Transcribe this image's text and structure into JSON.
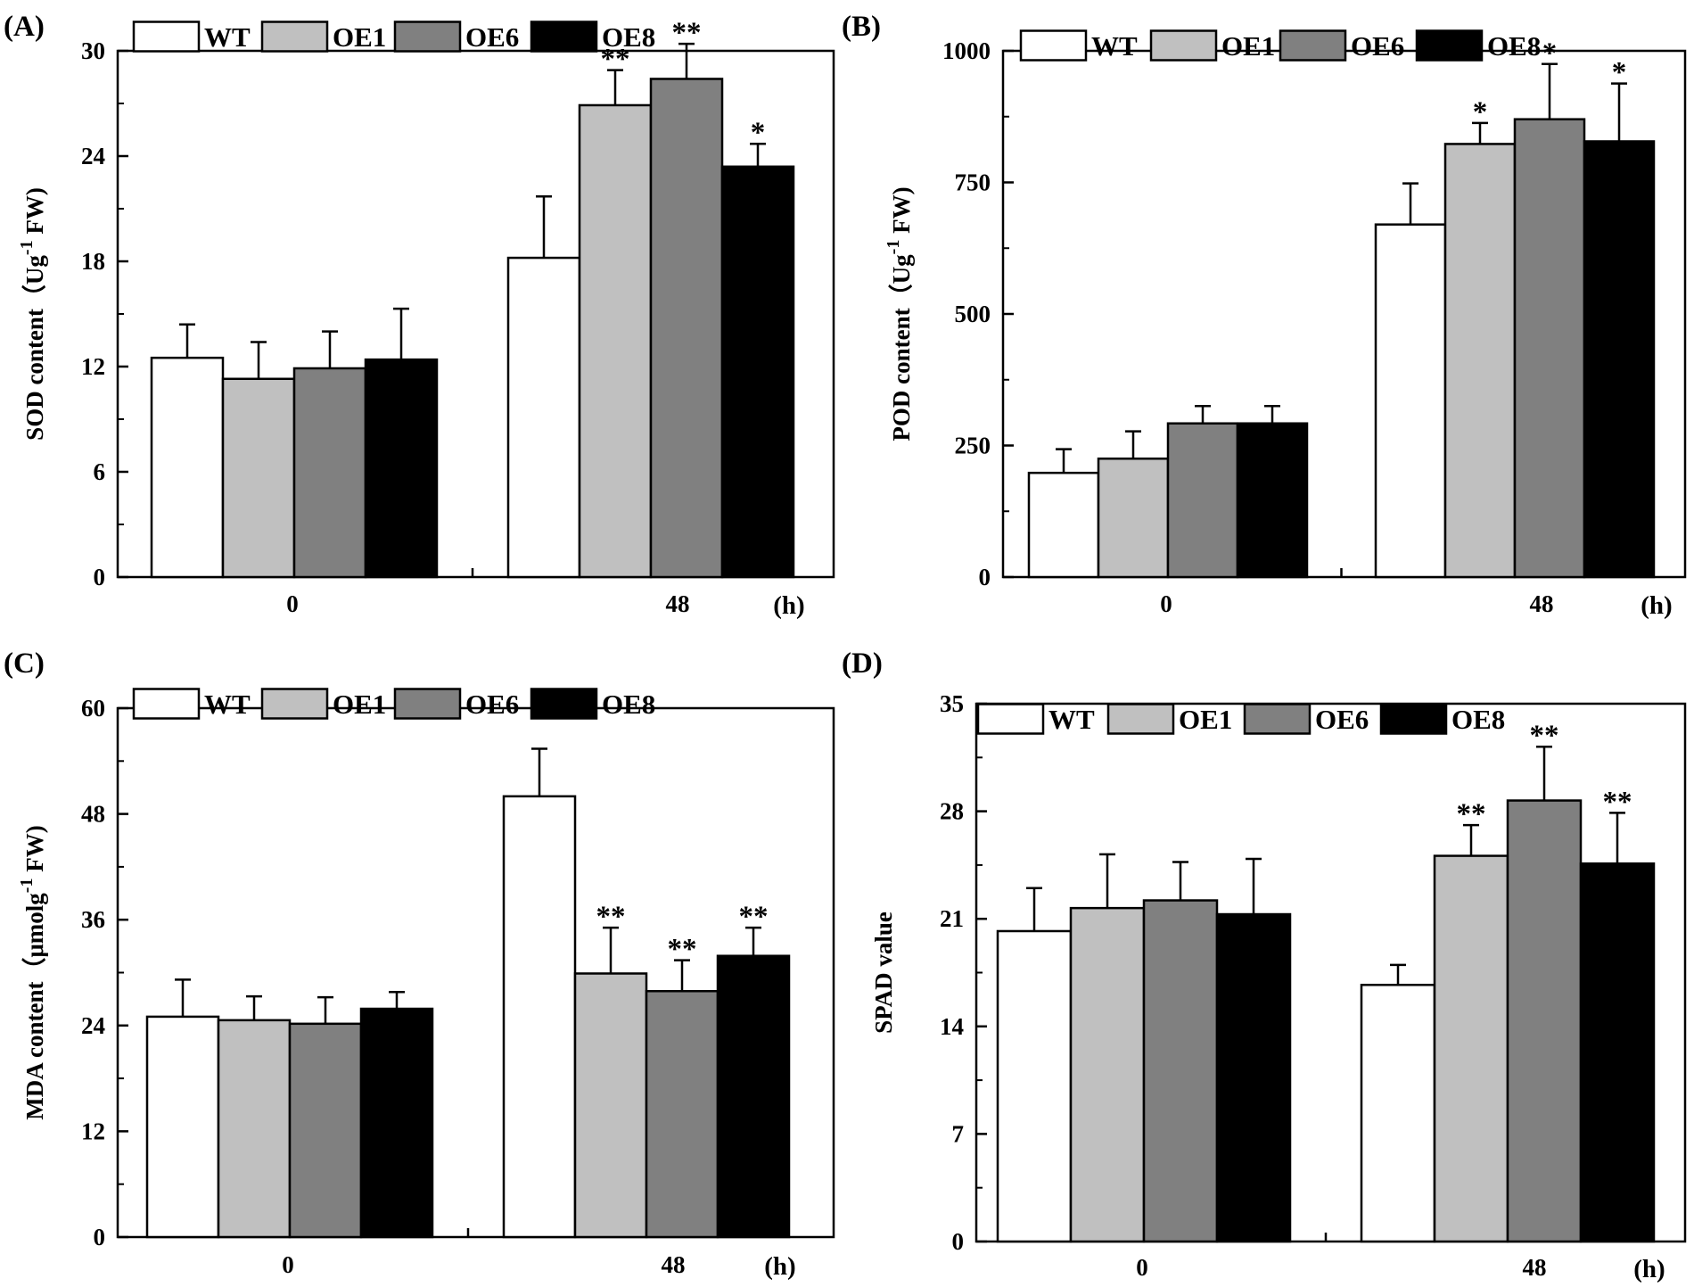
{
  "figure": {
    "legend": [
      {
        "label": "WT",
        "color": "#ffffff"
      },
      {
        "label": "OE1",
        "color": "#c0c0c0"
      },
      {
        "label": "OE6",
        "color": "#808080"
      },
      {
        "label": "OE8",
        "color": "#000000"
      }
    ]
  },
  "chart_data": [
    {
      "panel": "(A)",
      "type": "bar",
      "categories": [
        "0",
        "48"
      ],
      "x_unit": "(h)",
      "ylabel": "SOD content（Ug-1 FW)",
      "ylabel_parts": [
        "SOD content（Ug",
        "-1",
        " FW)"
      ],
      "ylim": [
        0,
        30
      ],
      "yticks": [
        0,
        6,
        12,
        18,
        24,
        30
      ],
      "series": [
        {
          "name": "WT",
          "values": [
            12.5,
            18.2
          ],
          "errors": [
            1.9,
            3.5
          ],
          "sig": [
            "",
            ""
          ]
        },
        {
          "name": "OE1",
          "values": [
            11.3,
            26.9
          ],
          "errors": [
            2.1,
            2.0
          ],
          "sig": [
            "",
            "**"
          ]
        },
        {
          "name": "OE6",
          "values": [
            11.9,
            28.4
          ],
          "errors": [
            2.1,
            2.0
          ],
          "sig": [
            "",
            "**"
          ]
        },
        {
          "name": "OE8",
          "values": [
            12.4,
            23.4
          ],
          "errors": [
            2.9,
            1.3
          ],
          "sig": [
            "",
            "*"
          ]
        }
      ]
    },
    {
      "panel": "(B)",
      "type": "bar",
      "categories": [
        "0",
        "48"
      ],
      "x_unit": "(h)",
      "ylabel": "POD content（Ug-1 FW)",
      "ylabel_parts": [
        "POD content（Ug",
        "-1",
        " FW)"
      ],
      "ylim": [
        0,
        1000
      ],
      "yticks": [
        0,
        250,
        500,
        750,
        1000
      ],
      "series": [
        {
          "name": "WT",
          "values": [
            198,
            670
          ],
          "errors": [
            45,
            78
          ],
          "sig": [
            "",
            ""
          ]
        },
        {
          "name": "OE1",
          "values": [
            225,
            823
          ],
          "errors": [
            52,
            40
          ],
          "sig": [
            "",
            "*"
          ]
        },
        {
          "name": "OE6",
          "values": [
            292,
            870
          ],
          "errors": [
            33,
            105
          ],
          "sig": [
            "",
            "*"
          ]
        },
        {
          "name": "OE8",
          "values": [
            292,
            828
          ],
          "errors": [
            33,
            110
          ],
          "sig": [
            "",
            "*"
          ]
        }
      ]
    },
    {
      "panel": "(C)",
      "type": "bar",
      "categories": [
        "0",
        "48"
      ],
      "x_unit": "(h)",
      "ylabel": "MDA content（μmolg-1 FW)",
      "ylabel_parts": [
        "MDA content（μmolg",
        "-1",
        " FW)"
      ],
      "ylim": [
        0,
        60
      ],
      "yticks": [
        0,
        12,
        24,
        36,
        48,
        60
      ],
      "series": [
        {
          "name": "WT",
          "values": [
            25.0,
            50.0
          ],
          "errors": [
            4.2,
            5.4
          ],
          "sig": [
            "",
            ""
          ]
        },
        {
          "name": "OE1",
          "values": [
            24.6,
            29.9
          ],
          "errors": [
            2.7,
            5.2
          ],
          "sig": [
            "",
            "**"
          ]
        },
        {
          "name": "OE6",
          "values": [
            24.2,
            27.9
          ],
          "errors": [
            3.0,
            3.5
          ],
          "sig": [
            "",
            "**"
          ]
        },
        {
          "name": "OE8",
          "values": [
            25.9,
            31.9
          ],
          "errors": [
            1.9,
            3.2
          ],
          "sig": [
            "",
            "**"
          ]
        }
      ]
    },
    {
      "panel": "(D)",
      "type": "bar",
      "categories": [
        "0",
        "48"
      ],
      "x_unit": "(h)",
      "ylabel": "SPAD value",
      "ylabel_parts": [
        "SPAD value",
        "",
        ""
      ],
      "ylim": [
        0,
        35
      ],
      "yticks": [
        0,
        7,
        14,
        21,
        28,
        35
      ],
      "series": [
        {
          "name": "WT",
          "values": [
            20.2,
            16.7
          ],
          "errors": [
            2.8,
            1.3
          ],
          "sig": [
            "",
            ""
          ]
        },
        {
          "name": "OE1",
          "values": [
            21.7,
            25.1
          ],
          "errors": [
            3.5,
            2.0
          ],
          "sig": [
            "",
            "**"
          ]
        },
        {
          "name": "OE6",
          "values": [
            22.2,
            28.7
          ],
          "errors": [
            2.5,
            3.5
          ],
          "sig": [
            "",
            "**"
          ]
        },
        {
          "name": "OE8",
          "values": [
            21.3,
            24.6
          ],
          "errors": [
            3.6,
            3.3
          ],
          "sig": [
            "",
            "**"
          ]
        }
      ]
    }
  ]
}
